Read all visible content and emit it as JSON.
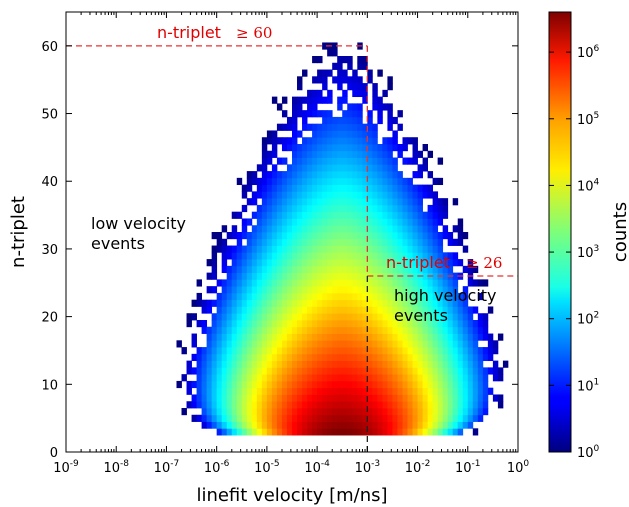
{
  "chart_data": {
    "type": "heatmap",
    "title": "",
    "xlabel": "linefit velocity [m/ns]",
    "ylabel": "n-triplet",
    "x_scale": "log",
    "xlim": [
      1e-09,
      1
    ],
    "ylim": [
      0,
      65
    ],
    "x_ticks": [
      {
        "base": "10",
        "exp": "-9"
      },
      {
        "base": "10",
        "exp": "-8"
      },
      {
        "base": "10",
        "exp": "-7"
      },
      {
        "base": "10",
        "exp": "-6"
      },
      {
        "base": "10",
        "exp": "-5"
      },
      {
        "base": "10",
        "exp": "-4"
      },
      {
        "base": "10",
        "exp": "-3"
      },
      {
        "base": "10",
        "exp": "-2"
      },
      {
        "base": "10",
        "exp": "-1"
      },
      {
        "base": "10",
        "exp": "0"
      }
    ],
    "y_ticks": [
      "0",
      "10",
      "20",
      "30",
      "40",
      "50",
      "60"
    ],
    "y_tick_values": [
      0,
      10,
      20,
      30,
      40,
      50,
      60
    ],
    "colorbar": {
      "label": "counts",
      "scale": "log",
      "range": [
        1,
        4000000
      ],
      "colormap": "jet",
      "ticks": [
        {
          "base": "10",
          "exp": "0"
        },
        {
          "base": "10",
          "exp": "1"
        },
        {
          "base": "10",
          "exp": "2"
        },
        {
          "base": "10",
          "exp": "3"
        },
        {
          "base": "10",
          "exp": "4"
        },
        {
          "base": "10",
          "exp": "5"
        },
        {
          "base": "10",
          "exp": "6"
        }
      ]
    },
    "distribution": {
      "peak_log10_velocity": -3.5,
      "peak_n_triplet": 3,
      "peak_log10_counts": 6.6,
      "n_triplet_min": 3,
      "n_triplet_max": 60
    },
    "cuts": {
      "velocity_threshold": 0.001,
      "low_velocity_n_triplet_min": 60,
      "high_velocity_n_triplet_min": 26,
      "line_color": "#e83030"
    },
    "annotations": {
      "low_cut_text": "n-triplet",
      "low_cut_math": "≥ 60",
      "high_cut_text": "n-triplet",
      "high_cut_math": "≥ 26",
      "low_region_line1": "low velocity",
      "low_region_line2": "events",
      "high_region_line1": "high velocity",
      "high_region_line2": "events"
    }
  }
}
